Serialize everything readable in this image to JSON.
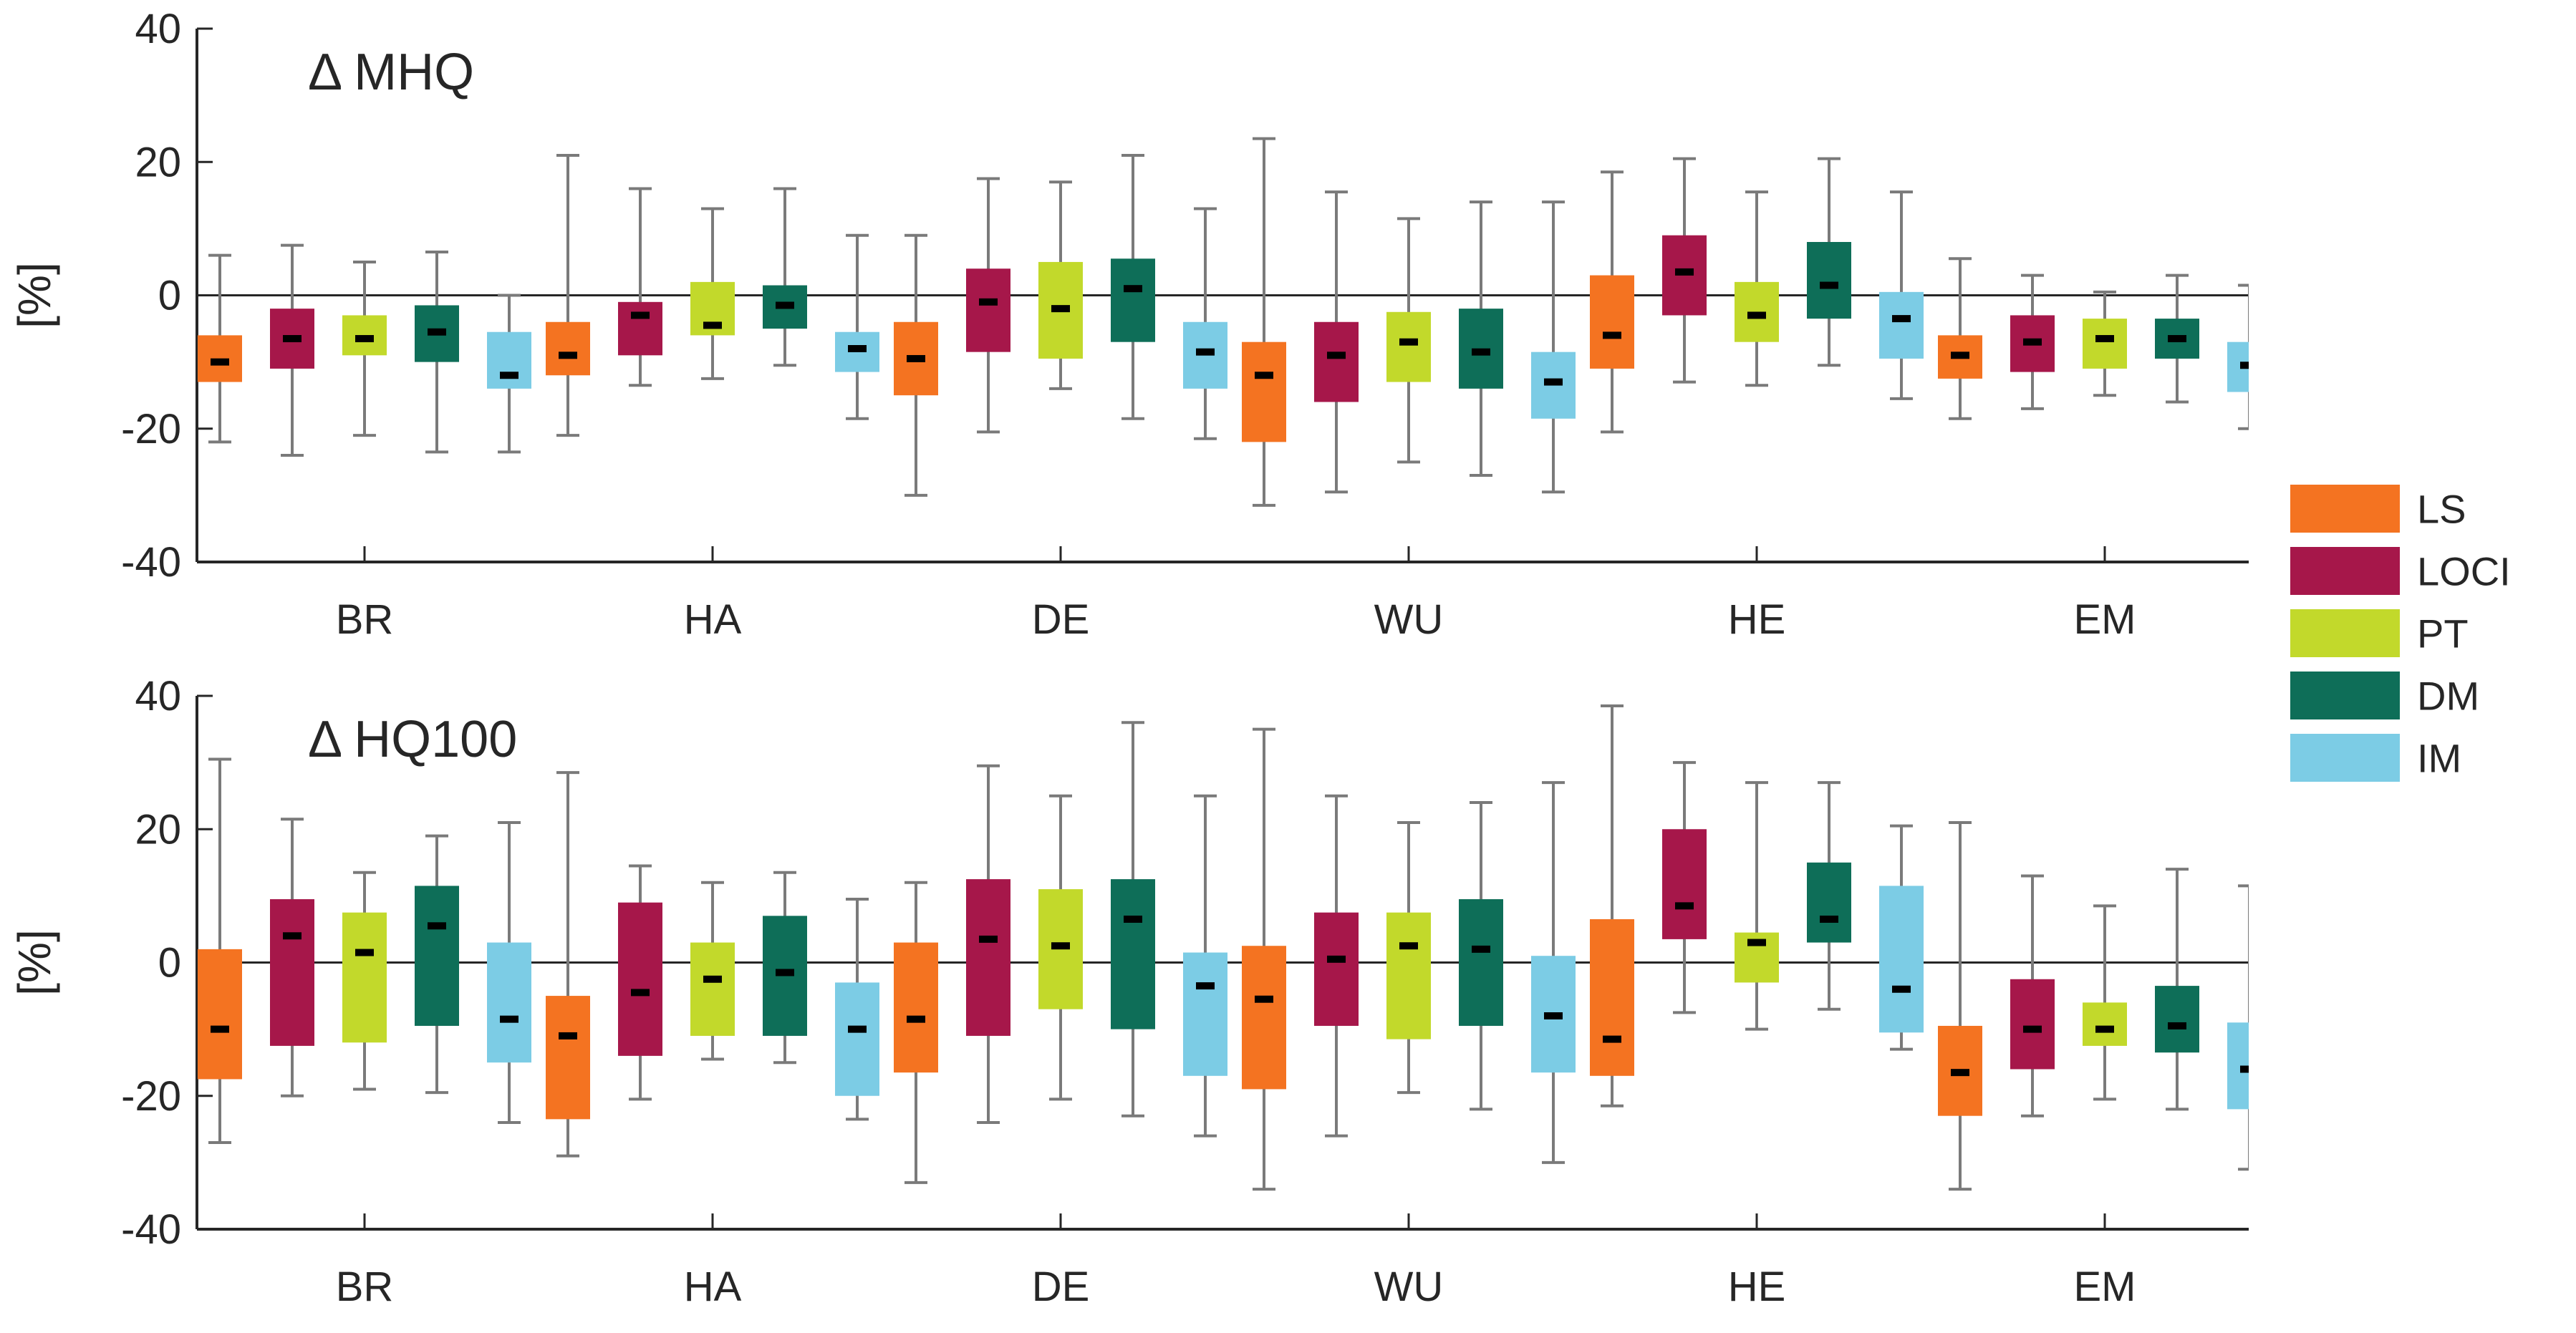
{
  "chart_data": [
    {
      "type": "boxplot",
      "title": "Δ MHQ",
      "ylabel": "[%]",
      "xlabel": "",
      "ylim": [
        -40,
        40
      ],
      "yticks": [
        -40,
        -20,
        0,
        20,
        40
      ],
      "categories": [
        "BR",
        "HA",
        "DE",
        "WU",
        "HE",
        "EM"
      ],
      "zero_line": true,
      "series": [
        {
          "name": "LS",
          "color": "#F47321",
          "boxes": [
            {
              "min": -22,
              "q1": -13,
              "median": -10,
              "q3": -6,
              "max": 6
            },
            {
              "min": -21,
              "q1": -12,
              "median": -9,
              "q3": -4,
              "max": 21
            },
            {
              "min": -30,
              "q1": -15,
              "median": -9.5,
              "q3": -4,
              "max": 9
            },
            {
              "min": -31.5,
              "q1": -22,
              "median": -12,
              "q3": -7,
              "max": 23.5
            },
            {
              "min": -20.5,
              "q1": -11,
              "median": -6,
              "q3": 3,
              "max": 18.5
            },
            {
              "min": -18.5,
              "q1": -12.5,
              "median": -9,
              "q3": -6,
              "max": 5.5
            }
          ]
        },
        {
          "name": "LOCI",
          "color": "#A6174A",
          "boxes": [
            {
              "min": -24,
              "q1": -11,
              "median": -6.5,
              "q3": -2,
              "max": 7.5
            },
            {
              "min": -13.5,
              "q1": -9,
              "median": -3,
              "q3": -1,
              "max": 16
            },
            {
              "min": -20.5,
              "q1": -8.5,
              "median": -1,
              "q3": 4,
              "max": 17.5
            },
            {
              "min": -29.5,
              "q1": -16,
              "median": -9,
              "q3": -4,
              "max": 15.5
            },
            {
              "min": -13,
              "q1": -3,
              "median": 3.5,
              "q3": 9,
              "max": 20.5
            },
            {
              "min": -17,
              "q1": -11.5,
              "median": -7,
              "q3": -3,
              "max": 3
            }
          ]
        },
        {
          "name": "PT",
          "color": "#C2D92B",
          "boxes": [
            {
              "min": -21,
              "q1": -9,
              "median": -6.5,
              "q3": -3,
              "max": 5
            },
            {
              "min": -12.5,
              "q1": -6,
              "median": -4.5,
              "q3": 2,
              "max": 13
            },
            {
              "min": -14,
              "q1": -9.5,
              "median": -2,
              "q3": 5,
              "max": 17
            },
            {
              "min": -25,
              "q1": -13,
              "median": -7,
              "q3": -2.5,
              "max": 11.5
            },
            {
              "min": -13.5,
              "q1": -7,
              "median": -3,
              "q3": 2,
              "max": 15.5
            },
            {
              "min": -15,
              "q1": -11,
              "median": -6.5,
              "q3": -3.5,
              "max": 0.5
            }
          ]
        },
        {
          "name": "DM",
          "color": "#0E6E58",
          "boxes": [
            {
              "min": -23.5,
              "q1": -10,
              "median": -5.5,
              "q3": -1.5,
              "max": 6.5
            },
            {
              "min": -10.5,
              "q1": -5,
              "median": -1.5,
              "q3": 1.5,
              "max": 16
            },
            {
              "min": -18.5,
              "q1": -7,
              "median": 1,
              "q3": 5.5,
              "max": 21
            },
            {
              "min": -27,
              "q1": -14,
              "median": -8.5,
              "q3": -2,
              "max": 14
            },
            {
              "min": -10.5,
              "q1": -3.5,
              "median": 1.5,
              "q3": 8,
              "max": 20.5
            },
            {
              "min": -16,
              "q1": -9.5,
              "median": -6.5,
              "q3": -3.5,
              "max": 3
            }
          ]
        },
        {
          "name": "IM",
          "color": "#7CCCE5",
          "boxes": [
            {
              "min": -23.5,
              "q1": -14,
              "median": -12,
              "q3": -5.5,
              "max": 0
            },
            {
              "min": -18.5,
              "q1": -11.5,
              "median": -8,
              "q3": -5.5,
              "max": 9
            },
            {
              "min": -21.5,
              "q1": -14,
              "median": -8.5,
              "q3": -4,
              "max": 13
            },
            {
              "min": -29.5,
              "q1": -18.5,
              "median": -13,
              "q3": -8.5,
              "max": 14
            },
            {
              "min": -15.5,
              "q1": -9.5,
              "median": -3.5,
              "q3": 0.5,
              "max": 15.5
            },
            {
              "min": -20,
              "q1": -14.5,
              "median": -10.5,
              "q3": -7,
              "max": 1.5
            }
          ]
        }
      ]
    },
    {
      "type": "boxplot",
      "title": "Δ HQ100",
      "ylabel": "[%]",
      "xlabel": "",
      "ylim": [
        -40,
        40
      ],
      "yticks": [
        -40,
        -20,
        0,
        20,
        40
      ],
      "categories": [
        "BR",
        "HA",
        "DE",
        "WU",
        "HE",
        "EM"
      ],
      "zero_line": true,
      "series": [
        {
          "name": "LS",
          "color": "#F47321",
          "boxes": [
            {
              "min": -27,
              "q1": -17.5,
              "median": -10,
              "q3": 2,
              "max": 30.5
            },
            {
              "min": -29,
              "q1": -23.5,
              "median": -11,
              "q3": -5,
              "max": 28.5
            },
            {
              "min": -33,
              "q1": -16.5,
              "median": -8.5,
              "q3": 3,
              "max": 12
            },
            {
              "min": -34,
              "q1": -19,
              "median": -5.5,
              "q3": 2.5,
              "max": 35
            },
            {
              "min": -21.5,
              "q1": -17,
              "median": -11.5,
              "q3": 6.5,
              "max": 38.5
            },
            {
              "min": -34,
              "q1": -23,
              "median": -16.5,
              "q3": -9.5,
              "max": 21
            }
          ]
        },
        {
          "name": "LOCI",
          "color": "#A6174A",
          "boxes": [
            {
              "min": -20,
              "q1": -12.5,
              "median": 4,
              "q3": 9.5,
              "max": 21.5
            },
            {
              "min": -20.5,
              "q1": -14,
              "median": -4.5,
              "q3": 9,
              "max": 14.5
            },
            {
              "min": -24,
              "q1": -11,
              "median": 3.5,
              "q3": 12.5,
              "max": 29.5
            },
            {
              "min": -26,
              "q1": -9.5,
              "median": 0.5,
              "q3": 7.5,
              "max": 25
            },
            {
              "min": -7.5,
              "q1": 3.5,
              "median": 8.5,
              "q3": 20,
              "max": 30
            },
            {
              "min": -23,
              "q1": -16,
              "median": -10,
              "q3": -2.5,
              "max": 13
            }
          ]
        },
        {
          "name": "PT",
          "color": "#C2D92B",
          "boxes": [
            {
              "min": -19,
              "q1": -12,
              "median": 1.5,
              "q3": 7.5,
              "max": 13.5
            },
            {
              "min": -14.5,
              "q1": -11,
              "median": -2.5,
              "q3": 3,
              "max": 12
            },
            {
              "min": -20.5,
              "q1": -7,
              "median": 2.5,
              "q3": 11,
              "max": 25
            },
            {
              "min": -19.5,
              "q1": -11.5,
              "median": 2.5,
              "q3": 7.5,
              "max": 21
            },
            {
              "min": -10,
              "q1": -3,
              "median": 3,
              "q3": 4.5,
              "max": 27
            },
            {
              "min": -20.5,
              "q1": -12.5,
              "median": -10,
              "q3": -6,
              "max": 8.5
            }
          ]
        },
        {
          "name": "DM",
          "color": "#0E6E58",
          "boxes": [
            {
              "min": -19.5,
              "q1": -9.5,
              "median": 5.5,
              "q3": 11.5,
              "max": 19
            },
            {
              "min": -15,
              "q1": -11,
              "median": -1.5,
              "q3": 7,
              "max": 13.5
            },
            {
              "min": -23,
              "q1": -10,
              "median": 6.5,
              "q3": 12.5,
              "max": 36
            },
            {
              "min": -22,
              "q1": -9.5,
              "median": 2,
              "q3": 9.5,
              "max": 24
            },
            {
              "min": -7,
              "q1": 3,
              "median": 6.5,
              "q3": 15,
              "max": 27
            },
            {
              "min": -22,
              "q1": -13.5,
              "median": -9.5,
              "q3": -3.5,
              "max": 14
            }
          ]
        },
        {
          "name": "IM",
          "color": "#7CCCE5",
          "boxes": [
            {
              "min": -24,
              "q1": -15,
              "median": -8.5,
              "q3": 3,
              "max": 21
            },
            {
              "min": -23.5,
              "q1": -20,
              "median": -10,
              "q3": -3,
              "max": 9.5
            },
            {
              "min": -26,
              "q1": -17,
              "median": -3.5,
              "q3": 1.5,
              "max": 25
            },
            {
              "min": -30,
              "q1": -16.5,
              "median": -8,
              "q3": 1,
              "max": 27
            },
            {
              "min": -13,
              "q1": -10.5,
              "median": -4,
              "q3": 11.5,
              "max": 20.5
            },
            {
              "min": -31,
              "q1": -22,
              "median": -16,
              "q3": -9,
              "max": 11.5
            }
          ]
        }
      ]
    }
  ],
  "legend": {
    "items": [
      {
        "label": "LS",
        "color": "#F47321"
      },
      {
        "label": "LOCI",
        "color": "#A6174A"
      },
      {
        "label": "PT",
        "color": "#C2D92B"
      },
      {
        "label": "DM",
        "color": "#0E6E58"
      },
      {
        "label": "IM",
        "color": "#7CCCE5"
      }
    ]
  }
}
